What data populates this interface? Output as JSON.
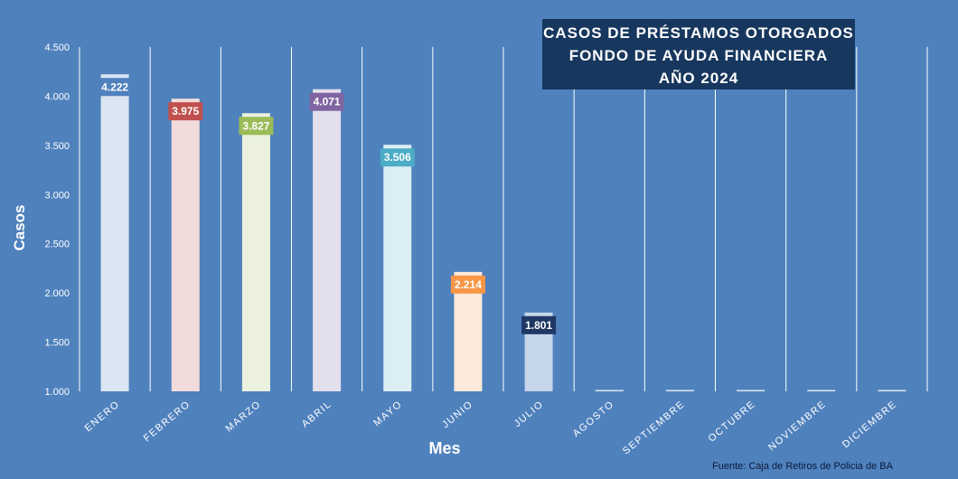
{
  "chart_data": {
    "type": "bar",
    "title_lines": [
      "CASOS DE PRÉSTAMOS OTORGADOS",
      "FONDO DE AYUDA FINANCIERA",
      "AÑO 2024"
    ],
    "xlabel": "Mes",
    "ylabel": "Casos",
    "source": "Fuente: Caja de Retiros de Policia de BA",
    "ylim": [
      1000,
      4500
    ],
    "yticks": [
      "1.000",
      "1.500",
      "2.000",
      "2.500",
      "3.000",
      "3.500",
      "4.000",
      "4.500"
    ],
    "ytick_values": [
      1000,
      1500,
      2000,
      2500,
      3000,
      3500,
      4000,
      4500
    ],
    "grid": "vertical",
    "categories": [
      "ENERO",
      "FEBRERO",
      "MARZO",
      "ABRIL",
      "MAYO",
      "JUNIO",
      "JULIO",
      "AGOSTO",
      "SEPTIEMBRE",
      "OCTUBRE",
      "NOVIEMBRE",
      "DICIEMBRE"
    ],
    "values": [
      4222,
      3975,
      3827,
      4071,
      3506,
      2214,
      1801,
      1000,
      1000,
      1000,
      1000,
      1000
    ],
    "data_labels": [
      "4.222",
      "3.975",
      "3.827",
      "4.071",
      "3.506",
      "2.214",
      "1.801",
      "",
      "",
      "",
      "",
      ""
    ],
    "bar_colors": [
      "#dce6f2",
      "#f2dcdb",
      "#ebf1de",
      "#e4dfec",
      "#dbeef4",
      "#fde9d9",
      "#c5d5ea",
      "#dce6f2",
      "#dce6f2",
      "#dce6f2",
      "#dce6f2",
      "#dce6f2"
    ],
    "label_colors": [
      "#4f81bd",
      "#c0504d",
      "#9bbb59",
      "#8064a2",
      "#4bacc6",
      "#f79646",
      "#1f3864",
      "#4f81bd",
      "#4f81bd",
      "#4f81bd",
      "#4f81bd",
      "#4f81bd"
    ],
    "colors": {
      "background": "#4f81bd",
      "grid": "#ffffff",
      "title_box": "#17375e"
    }
  }
}
